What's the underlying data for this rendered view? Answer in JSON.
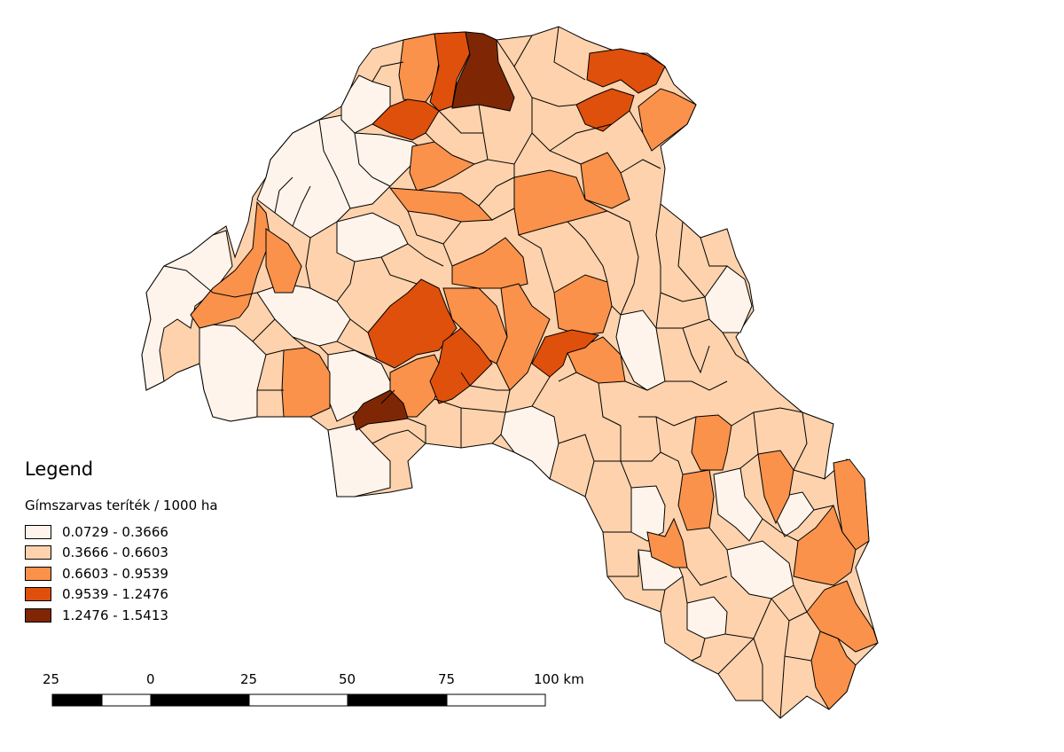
{
  "legend": {
    "title": "Legend",
    "subtitle": "Gímszarvas teríték / 1000 ha",
    "classes": [
      {
        "label": "0.0729 - 0.3666",
        "color": "#fef4eb"
      },
      {
        "label": "0.3666 - 0.6603",
        "color": "#fdd2ac"
      },
      {
        "label": "0.6603 - 0.9539",
        "color": "#fa924b"
      },
      {
        "label": "0.9539 - 1.2476",
        "color": "#de500b"
      },
      {
        "label": "1.2476 - 1.5413",
        "color": "#7f2704"
      }
    ]
  },
  "scalebar": {
    "labels": [
      "25",
      "0",
      "25",
      "50",
      "75",
      "100 km"
    ]
  }
}
